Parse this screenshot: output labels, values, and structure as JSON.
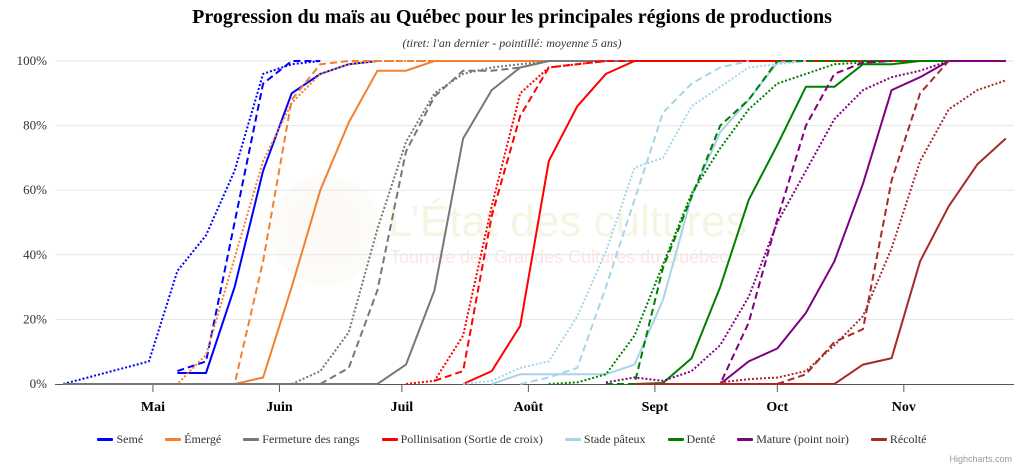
{
  "chart_data": {
    "type": "line",
    "title": "Progression du maïs au Québec pour les principales régions de productions",
    "subtitle": "(tiret: l'an dernier - pointillé: moyenne 5 ans)",
    "x_unit": "days since May 1",
    "xlim": [
      -24,
      211
    ],
    "ylim": [
      0,
      100
    ],
    "y_ticks": [
      "0%",
      "20%",
      "40%",
      "60%",
      "80%",
      "100%"
    ],
    "y_tick_values": [
      0,
      20,
      40,
      60,
      80,
      100
    ],
    "x_ticks": [
      {
        "label": "Mai",
        "day": 0
      },
      {
        "label": "Juin",
        "day": 31
      },
      {
        "label": "Juil",
        "day": 61
      },
      {
        "label": "Août",
        "day": 92
      },
      {
        "label": "Sept",
        "day": 123
      },
      {
        "label": "Oct",
        "day": 153
      },
      {
        "label": "Nov",
        "day": 184
      }
    ],
    "grid": true,
    "legend_position": "bottom",
    "series": [
      {
        "name": "Semé",
        "color": "#0000ff",
        "current": [
          [
            6,
            3.4
          ],
          [
            13,
            3.4
          ],
          [
            20,
            30
          ],
          [
            27,
            66
          ],
          [
            34,
            90
          ],
          [
            41,
            96
          ],
          [
            48,
            99
          ],
          [
            55,
            100
          ]
        ],
        "last_year": [
          [
            6,
            4
          ],
          [
            13,
            7
          ],
          [
            20,
            50
          ],
          [
            27,
            93
          ],
          [
            34,
            100
          ],
          [
            41,
            100
          ]
        ],
        "avg5": [
          [
            -22,
            0
          ],
          [
            -1,
            7
          ],
          [
            6,
            35
          ],
          [
            13,
            46
          ],
          [
            20,
            66
          ],
          [
            27,
            96
          ],
          [
            34,
            99
          ],
          [
            41,
            100
          ]
        ]
      },
      {
        "name": "Émergé",
        "color": "#f28030",
        "current": [
          [
            -22,
            0
          ],
          [
            20,
            0
          ],
          [
            27,
            2
          ],
          [
            34,
            30
          ],
          [
            41,
            60
          ],
          [
            48,
            81
          ],
          [
            55,
            97
          ],
          [
            62,
            97
          ],
          [
            69,
            100
          ],
          [
            209,
            100
          ]
        ],
        "last_year": [
          [
            13,
            0
          ],
          [
            20,
            0
          ],
          [
            27,
            38
          ],
          [
            34,
            88
          ],
          [
            41,
            99
          ],
          [
            48,
            100
          ],
          [
            209,
            100
          ]
        ],
        "avg5": [
          [
            -22,
            0
          ],
          [
            6,
            0
          ],
          [
            13,
            9
          ],
          [
            20,
            39
          ],
          [
            27,
            69
          ],
          [
            34,
            87
          ],
          [
            41,
            96
          ],
          [
            48,
            99
          ],
          [
            55,
            100
          ],
          [
            209,
            100
          ]
        ]
      },
      {
        "name": "Fermeture des rangs",
        "color": "#777777",
        "current": [
          [
            -22,
            0
          ],
          [
            55,
            0
          ],
          [
            62,
            6
          ],
          [
            69,
            29
          ],
          [
            76,
            76
          ],
          [
            83,
            91
          ],
          [
            90,
            98
          ],
          [
            97,
            100
          ],
          [
            209,
            100
          ]
        ],
        "last_year": [
          [
            41,
            0
          ],
          [
            48,
            5
          ],
          [
            55,
            29
          ],
          [
            62,
            72
          ],
          [
            69,
            89
          ],
          [
            76,
            97
          ],
          [
            83,
            97
          ],
          [
            90,
            98
          ],
          [
            97,
            100
          ]
        ],
        "avg5": [
          [
            34,
            0
          ],
          [
            41,
            4
          ],
          [
            48,
            16
          ],
          [
            55,
            48
          ],
          [
            62,
            75
          ],
          [
            69,
            90
          ],
          [
            76,
            96
          ],
          [
            83,
            98
          ],
          [
            90,
            99
          ],
          [
            97,
            100
          ]
        ]
      },
      {
        "name": "Pollinisation (Sortie de croix)",
        "color": "#ff0000",
        "current": [
          [
            76,
            0
          ],
          [
            83,
            4
          ],
          [
            90,
            18
          ],
          [
            97,
            69
          ],
          [
            104,
            86
          ],
          [
            111,
            96
          ],
          [
            118,
            100
          ],
          [
            209,
            100
          ]
        ],
        "last_year": [
          [
            69,
            1
          ],
          [
            76,
            4
          ],
          [
            83,
            52
          ],
          [
            90,
            83
          ],
          [
            97,
            98
          ],
          [
            104,
            99
          ],
          [
            111,
            100
          ],
          [
            160,
            100
          ]
        ],
        "avg5": [
          [
            62,
            0
          ],
          [
            69,
            1
          ],
          [
            76,
            15
          ],
          [
            83,
            55
          ],
          [
            90,
            90
          ],
          [
            97,
            98
          ],
          [
            104,
            99
          ],
          [
            111,
            100
          ]
        ]
      },
      {
        "name": "Stade pâteux",
        "color": "#a6d5e8",
        "current": [
          [
            83,
            0
          ],
          [
            90,
            3
          ],
          [
            97,
            3
          ],
          [
            104,
            3
          ],
          [
            111,
            3
          ],
          [
            118,
            6
          ],
          [
            125,
            26
          ],
          [
            132,
            58
          ],
          [
            139,
            78
          ],
          [
            146,
            88
          ],
          [
            153,
            99.5
          ],
          [
            160,
            100
          ]
        ],
        "last_year": [
          [
            90,
            0
          ],
          [
            97,
            2
          ],
          [
            104,
            5
          ],
          [
            111,
            30
          ],
          [
            118,
            57
          ],
          [
            125,
            84
          ],
          [
            132,
            93
          ],
          [
            139,
            98
          ],
          [
            146,
            100
          ]
        ],
        "avg5": [
          [
            76,
            0
          ],
          [
            83,
            1
          ],
          [
            90,
            5
          ],
          [
            97,
            7
          ],
          [
            104,
            21
          ],
          [
            111,
            41
          ],
          [
            118,
            67
          ],
          [
            125,
            70
          ],
          [
            132,
            86
          ],
          [
            139,
            92
          ],
          [
            146,
            98
          ],
          [
            153,
            99
          ],
          [
            160,
            100
          ]
        ]
      },
      {
        "name": "Denté",
        "color": "#008000",
        "current": [
          [
            118,
            0
          ],
          [
            125,
            0.3
          ],
          [
            132,
            8
          ],
          [
            139,
            30
          ],
          [
            146,
            57
          ],
          [
            153,
            74
          ],
          [
            160,
            92
          ],
          [
            167,
            92
          ],
          [
            174,
            99
          ],
          [
            181,
            99
          ],
          [
            188,
            100
          ],
          [
            209,
            100
          ]
        ],
        "last_year": [
          [
            111,
            0
          ],
          [
            118,
            0
          ],
          [
            125,
            36
          ],
          [
            132,
            58
          ],
          [
            139,
            80
          ],
          [
            146,
            88
          ],
          [
            153,
            100
          ],
          [
            209,
            100
          ]
        ],
        "avg5": [
          [
            97,
            0
          ],
          [
            104,
            0.5
          ],
          [
            111,
            3
          ],
          [
            118,
            15
          ],
          [
            125,
            37
          ],
          [
            132,
            59
          ],
          [
            139,
            73
          ],
          [
            146,
            85
          ],
          [
            153,
            93
          ],
          [
            160,
            96
          ],
          [
            167,
            99
          ],
          [
            174,
            99.5
          ],
          [
            181,
            100
          ]
        ]
      },
      {
        "name": "Mature (point noir)",
        "color": "#800080",
        "current": [
          [
            139,
            0
          ],
          [
            146,
            7
          ],
          [
            153,
            11
          ],
          [
            160,
            22
          ],
          [
            167,
            38
          ],
          [
            174,
            62
          ],
          [
            181,
            91
          ],
          [
            188,
            95
          ],
          [
            195,
            100
          ],
          [
            209,
            100
          ]
        ],
        "last_year": [
          [
            132,
            0
          ],
          [
            139,
            0
          ],
          [
            146,
            19
          ],
          [
            153,
            51
          ],
          [
            160,
            80
          ],
          [
            167,
            96
          ],
          [
            174,
            99.5
          ],
          [
            181,
            100
          ]
        ],
        "avg5": [
          [
            111,
            0.5
          ],
          [
            118,
            2
          ],
          [
            125,
            1
          ],
          [
            132,
            4
          ],
          [
            139,
            12
          ],
          [
            146,
            27
          ],
          [
            153,
            50
          ],
          [
            160,
            66
          ],
          [
            167,
            82
          ],
          [
            174,
            91
          ],
          [
            181,
            95
          ],
          [
            188,
            97
          ],
          [
            195,
            100
          ]
        ]
      },
      {
        "name": "Récolté",
        "color": "#a52a2a",
        "current": [
          [
            118,
            0
          ],
          [
            167,
            0
          ],
          [
            174,
            6
          ],
          [
            181,
            8
          ],
          [
            188,
            38
          ],
          [
            195,
            55
          ],
          [
            202,
            68
          ],
          [
            209,
            76
          ]
        ],
        "last_year": [
          [
            153,
            0
          ],
          [
            160,
            3
          ],
          [
            167,
            13
          ],
          [
            174,
            17
          ],
          [
            181,
            63
          ],
          [
            188,
            90
          ],
          [
            195,
            100
          ]
        ],
        "avg5": [
          [
            139,
            0.5
          ],
          [
            146,
            1.5
          ],
          [
            153,
            2
          ],
          [
            160,
            4
          ],
          [
            167,
            12
          ],
          [
            174,
            21
          ],
          [
            181,
            42
          ],
          [
            188,
            69
          ],
          [
            195,
            85
          ],
          [
            202,
            91
          ],
          [
            209,
            94
          ]
        ]
      }
    ]
  },
  "watermark": {
    "line1": "L’État des cultures",
    "line2": "Tournée des Grandes Cultures du Québec"
  },
  "credits": "Highcharts.com"
}
